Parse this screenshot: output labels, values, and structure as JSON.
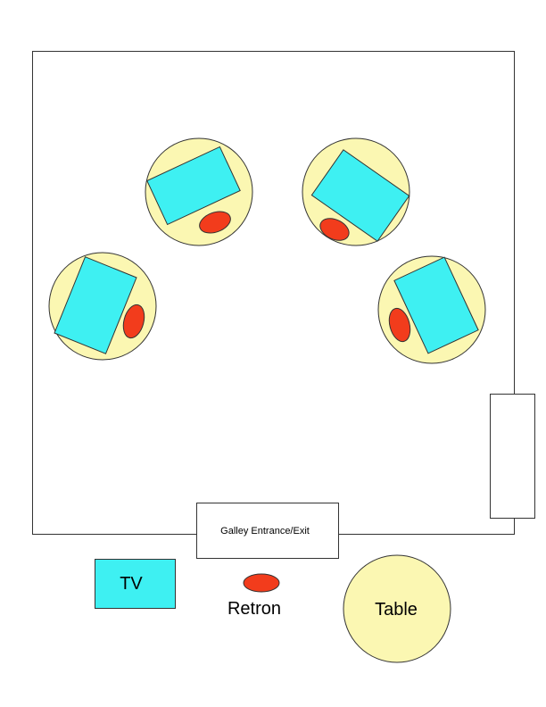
{
  "diagram": {
    "entrance_label": "Galley Entrance/Exit",
    "legend": {
      "tv_label": "TV",
      "retron_label": "Retron",
      "table_label": "Table"
    }
  },
  "colors": {
    "table_fill": "#fbf7b2",
    "tv_fill": "#3ef0f2",
    "retron_fill": "#f23c1c",
    "outline": "#333333",
    "background": "#ffffff"
  }
}
